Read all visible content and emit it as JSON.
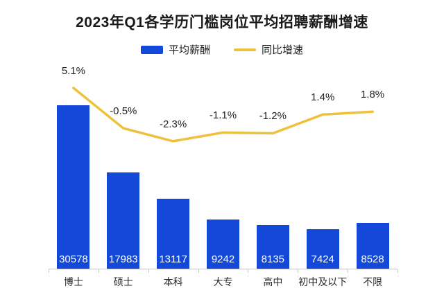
{
  "title": "2023年Q1各学历门槛岗位平均招聘薪酬增速",
  "legend": [
    {
      "label": "平均薪酬",
      "type": "bar",
      "color": "#1448d8"
    },
    {
      "label": "同比增速",
      "type": "line",
      "color": "#eec13d"
    }
  ],
  "colors": {
    "bar": "#1448d8",
    "line": "#eec13d",
    "axis": "#c4c4c4",
    "bar_value_text": "#ffffff",
    "title_text": "#1a1a1a"
  },
  "chart_data": {
    "type": "bar+line",
    "title": "2023年Q1各学历门槛岗位平均招聘薪酬增速",
    "categories": [
      "博士",
      "硕士",
      "本科",
      "大专",
      "高中",
      "初中及以下",
      "不限"
    ],
    "series": [
      {
        "name": "平均薪酬",
        "type": "bar",
        "values": [
          30578,
          17983,
          13117,
          9242,
          8135,
          7424,
          8528
        ],
        "value_labels": [
          "30578",
          "17983",
          "13117",
          "9242",
          "8135",
          "7424",
          "8528"
        ],
        "color": "#1448d8",
        "label_position": "inside-bottom"
      },
      {
        "name": "同比增速",
        "type": "line",
        "values": [
          5.1,
          -0.5,
          -2.3,
          -1.1,
          -1.2,
          1.4,
          1.8
        ],
        "value_labels": [
          "5.1%",
          "-0.5%",
          "-2.3%",
          "-1.1%",
          "-1.2%",
          "1.4%",
          "1.8%"
        ],
        "color": "#eec13d",
        "label_position": "above"
      }
    ],
    "xlabel": "",
    "ylabel": "",
    "legend_position": "top-center",
    "grid": false,
    "background": "#ffffff"
  }
}
